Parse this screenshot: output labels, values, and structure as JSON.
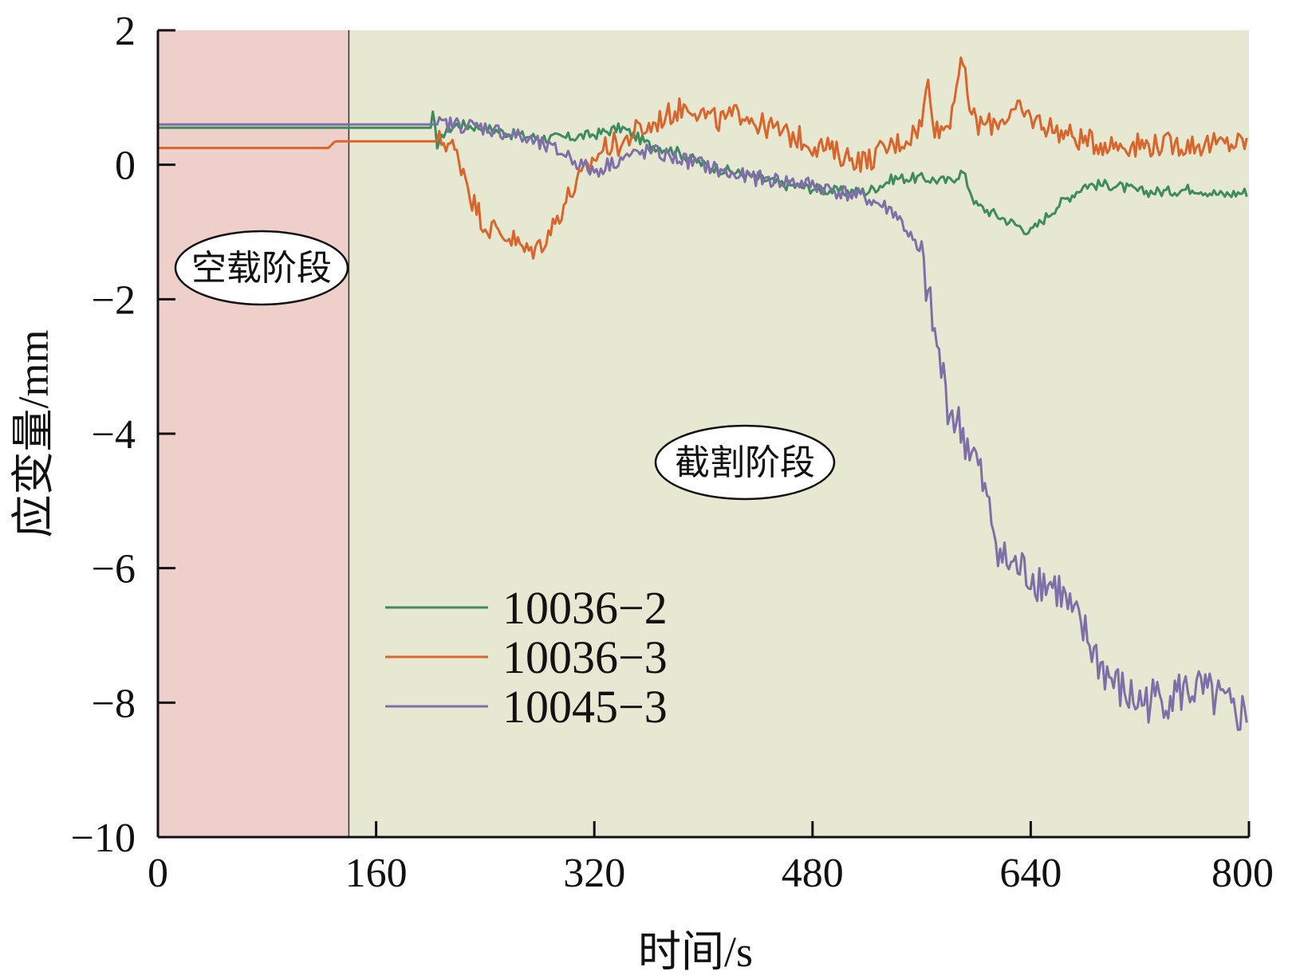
{
  "chart_data": {
    "type": "line",
    "title": "",
    "xlabel": "时间/s",
    "ylabel": "应变量/mm",
    "xlim": [
      0,
      800
    ],
    "ylim": [
      -10,
      2
    ],
    "x_ticks": [
      "0",
      "160",
      "320",
      "480",
      "640",
      "800"
    ],
    "y_ticks": [
      "2",
      "0",
      "−2",
      "−4",
      "−6",
      "−8",
      "−10"
    ],
    "grid": false,
    "legend_position": "lower-left",
    "regions": [
      {
        "label": "空载阶段",
        "x_start": 0,
        "x_end": 140,
        "color": "#efcfca"
      },
      {
        "label": "截割阶段",
        "x_start": 140,
        "x_end": 800,
        "color": "#e6e8d1"
      }
    ],
    "series": [
      {
        "name": "10036−2",
        "color": "#3e8b5e",
        "x": [
          0,
          200,
          202,
          205,
          210,
          220,
          240,
          260,
          280,
          300,
          320,
          340,
          360,
          380,
          400,
          420,
          440,
          460,
          480,
          500,
          520,
          540,
          560,
          580,
          590,
          600,
          620,
          640,
          660,
          680,
          700,
          720,
          740,
          760,
          780,
          800
        ],
        "y": [
          0.55,
          0.55,
          0.85,
          0.2,
          0.5,
          0.6,
          0.55,
          0.45,
          0.4,
          0.4,
          0.45,
          0.55,
          0.3,
          0.2,
          0.0,
          -0.1,
          -0.2,
          -0.3,
          -0.35,
          -0.4,
          -0.4,
          -0.2,
          -0.2,
          -0.25,
          -0.1,
          -0.6,
          -0.8,
          -1.0,
          -0.6,
          -0.3,
          -0.3,
          -0.4,
          -0.4,
          -0.35,
          -0.45,
          -0.4
        ]
      },
      {
        "name": "10036−3",
        "color": "#d9652c",
        "x": [
          0,
          125,
          130,
          200,
          210,
          215,
          220,
          225,
          230,
          240,
          250,
          260,
          270,
          280,
          290,
          300,
          310,
          320,
          330,
          340,
          350,
          360,
          370,
          380,
          390,
          400,
          410,
          420,
          430,
          440,
          450,
          460,
          470,
          480,
          490,
          500,
          510,
          520,
          530,
          540,
          550,
          560,
          565,
          570,
          580,
          585,
          590,
          595,
          600,
          610,
          620,
          630,
          640,
          650,
          660,
          680,
          700,
          720,
          740,
          760,
          780,
          800
        ],
        "y": [
          0.25,
          0.25,
          0.35,
          0.35,
          0.35,
          0.3,
          0.1,
          -0.1,
          -0.5,
          -0.9,
          -1.0,
          -1.1,
          -1.3,
          -1.2,
          -0.9,
          -0.5,
          -0.2,
          0.1,
          0.3,
          0.3,
          0.5,
          0.55,
          0.7,
          0.8,
          0.9,
          0.75,
          0.65,
          0.7,
          0.8,
          0.6,
          0.55,
          0.45,
          0.4,
          0.3,
          0.25,
          0.15,
          0.1,
          0.05,
          0.2,
          0.3,
          0.4,
          0.6,
          1.3,
          0.5,
          0.6,
          1.2,
          1.5,
          0.9,
          0.6,
          0.6,
          0.7,
          0.8,
          0.7,
          0.6,
          0.5,
          0.35,
          0.3,
          0.3,
          0.3,
          0.3,
          0.3,
          0.35
        ]
      },
      {
        "name": "10045−3",
        "color": "#7f6fa8",
        "x": [
          0,
          200,
          210,
          220,
          240,
          260,
          280,
          300,
          310,
          320,
          340,
          360,
          380,
          400,
          420,
          440,
          460,
          480,
          500,
          520,
          540,
          550,
          560,
          565,
          570,
          575,
          580,
          590,
          600,
          610,
          620,
          630,
          640,
          650,
          660,
          670,
          680,
          690,
          700,
          710,
          720,
          740,
          760,
          780,
          790,
          800
        ],
        "y": [
          0.6,
          0.6,
          0.6,
          0.6,
          0.55,
          0.45,
          0.3,
          0.15,
          0.0,
          -0.1,
          0.1,
          0.2,
          0.1,
          0.0,
          -0.15,
          -0.2,
          -0.25,
          -0.3,
          -0.4,
          -0.5,
          -0.7,
          -1.0,
          -1.4,
          -2.0,
          -2.6,
          -3.1,
          -3.6,
          -4.0,
          -4.4,
          -5.2,
          -5.9,
          -6.0,
          -6.1,
          -6.2,
          -6.3,
          -6.7,
          -7.0,
          -7.4,
          -7.7,
          -7.9,
          -8.0,
          -7.9,
          -7.8,
          -8.0,
          -8.2,
          -8.1
        ]
      }
    ]
  }
}
